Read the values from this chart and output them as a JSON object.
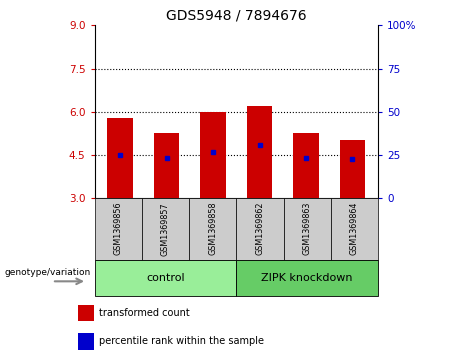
{
  "title": "GDS5948 / 7894676",
  "samples": [
    "GSM1369856",
    "GSM1369857",
    "GSM1369858",
    "GSM1369862",
    "GSM1369863",
    "GSM1369864"
  ],
  "bar_bottoms": [
    3,
    3,
    3,
    3,
    3,
    3
  ],
  "bar_tops": [
    5.78,
    5.25,
    5.97,
    6.18,
    5.25,
    5.02
  ],
  "blue_dot_y": [
    4.5,
    4.38,
    4.6,
    4.85,
    4.4,
    4.35
  ],
  "ylim": [
    3,
    9
  ],
  "yticks_left": [
    3,
    4.5,
    6,
    7.5,
    9
  ],
  "yticks_right": [
    0,
    25,
    50,
    75,
    100
  ],
  "left_tick_color": "#cc0000",
  "right_tick_color": "#0000cc",
  "bar_color": "#cc0000",
  "dot_color": "#0000cc",
  "hlines": [
    4.5,
    6.0,
    7.5
  ],
  "groups": [
    {
      "label": "control",
      "indices": [
        0,
        1,
        2
      ],
      "color": "#99ee99"
    },
    {
      "label": "ZIPK knockdown",
      "indices": [
        3,
        4,
        5
      ],
      "color": "#66cc66"
    }
  ],
  "group_row_color": "#cccccc",
  "legend_items": [
    {
      "color": "#cc0000",
      "label": "transformed count"
    },
    {
      "color": "#0000cc",
      "label": "percentile rank within the sample"
    }
  ],
  "genotype_label": "genotype/variation",
  "background_color": "#ffffff",
  "plot_bg": "#ffffff",
  "bar_width": 0.55
}
